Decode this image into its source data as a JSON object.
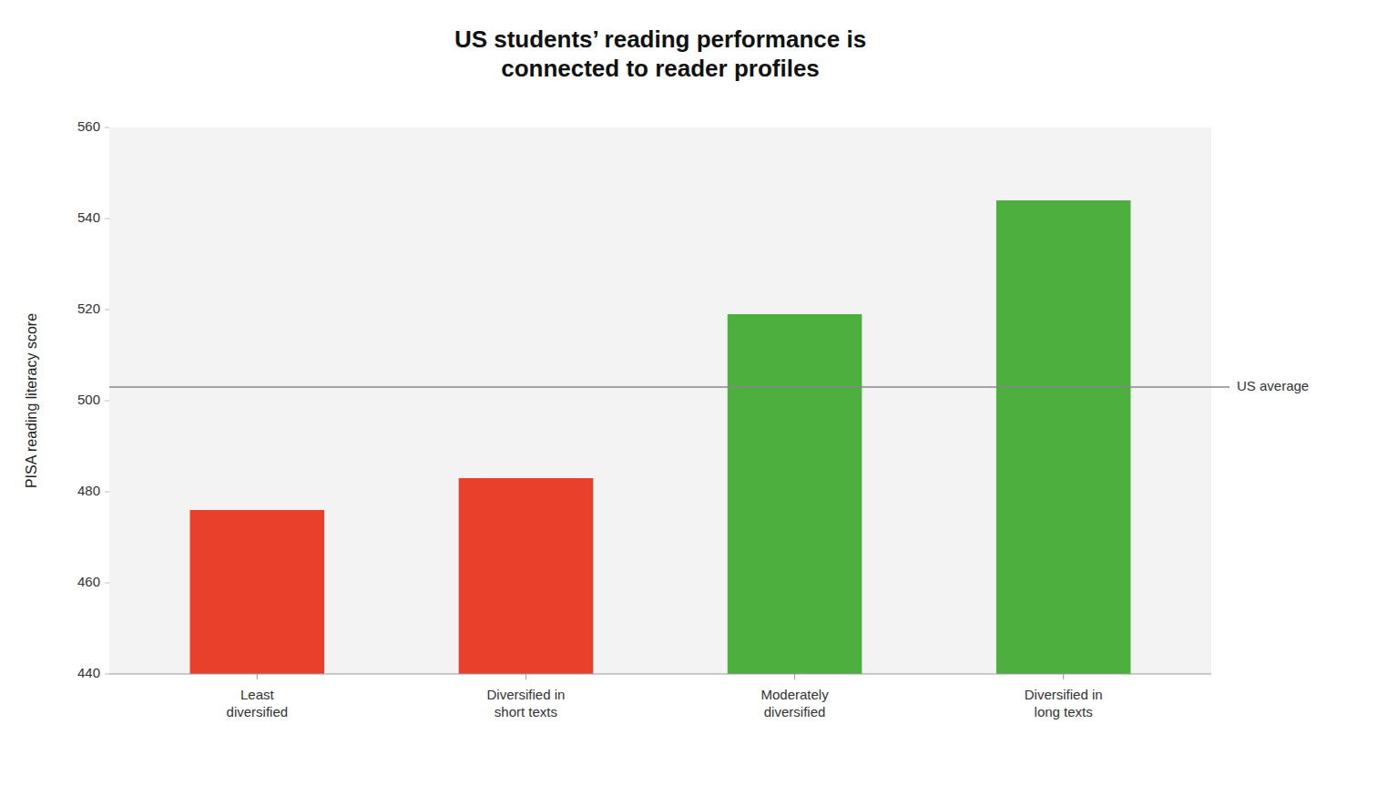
{
  "chart_data": {
    "type": "bar",
    "title": "US students’ reading performance is\nconnected to reader profiles",
    "categories": [
      "Least\ndiversified",
      "Diversified in\nshort texts",
      "Moderately\ndiversified",
      "Diversified in\nlong texts"
    ],
    "values": [
      476,
      483,
      519,
      544
    ],
    "colors": [
      "#e8402a",
      "#e8402a",
      "#4caf3e",
      "#4caf3e"
    ],
    "y_label": "PISA reading literacy score",
    "ylim": [
      440,
      560
    ],
    "yticks": [
      440,
      460,
      480,
      500,
      520,
      540,
      560
    ],
    "annotations": [
      {
        "text": "US average",
        "y": 503
      }
    ],
    "grid": false
  }
}
